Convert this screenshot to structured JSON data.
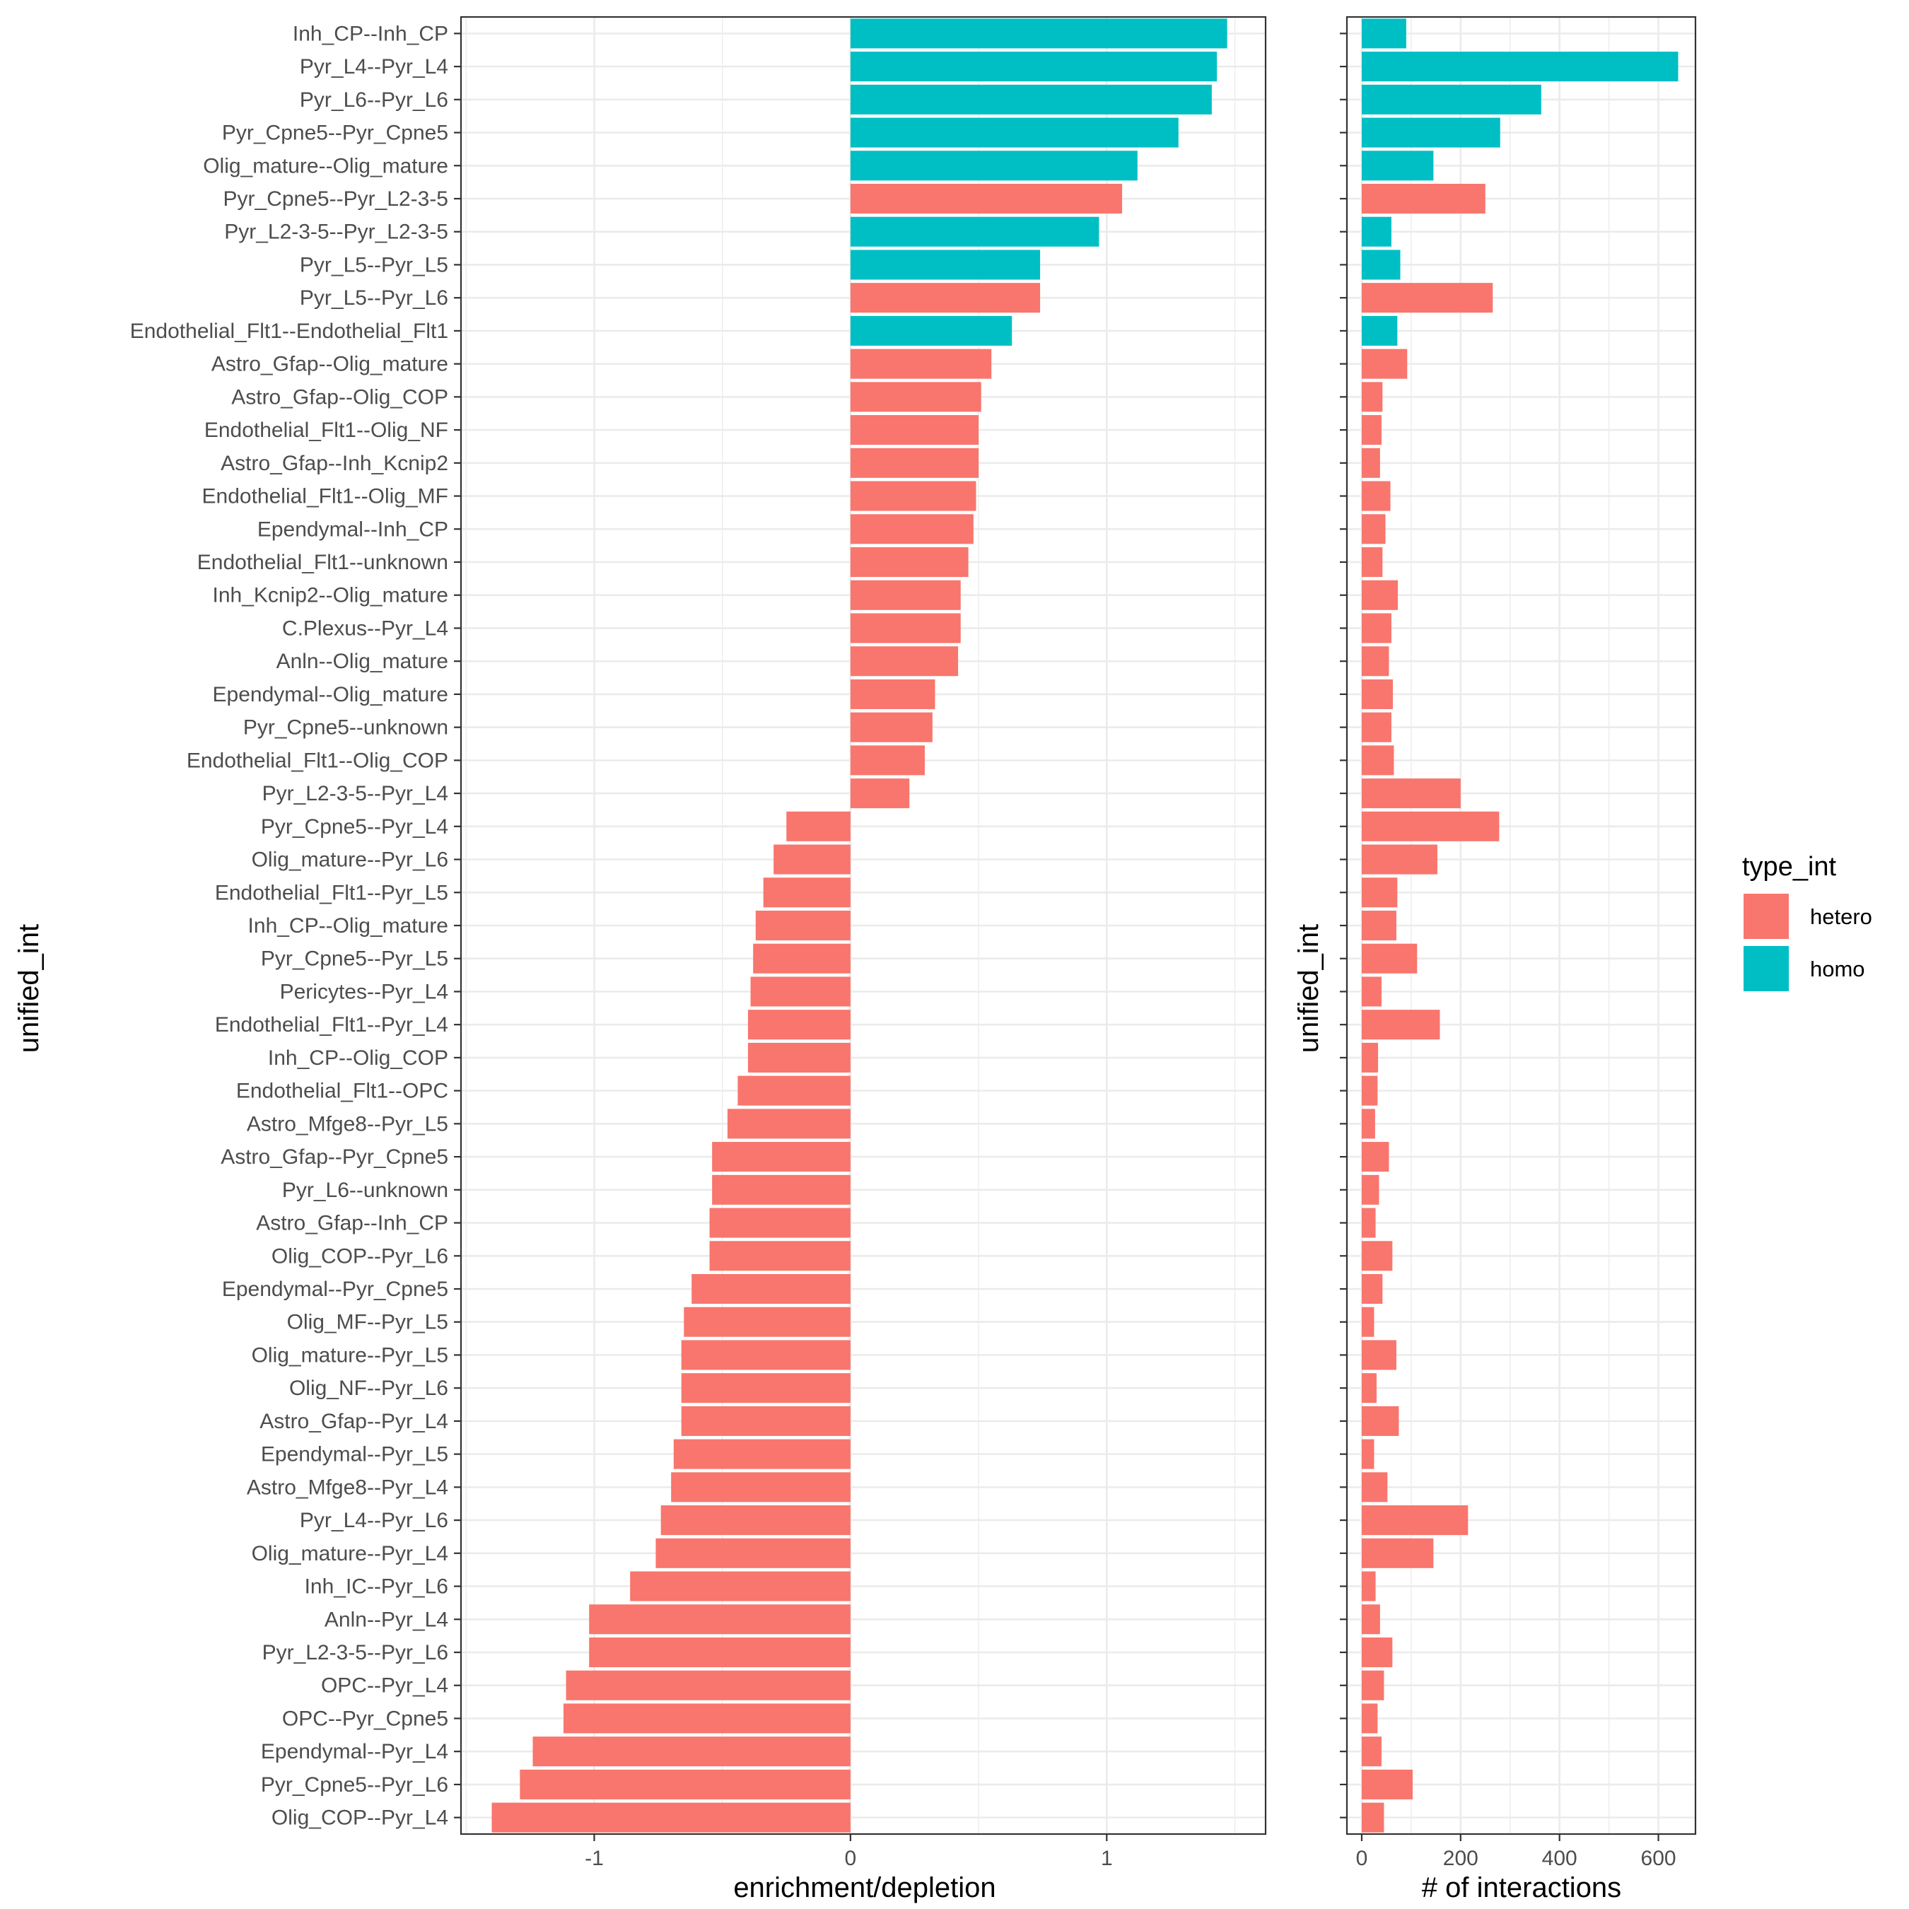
{
  "chart_data": [
    {
      "type": "bar",
      "orientation": "horizontal",
      "xlabel": "enrichment/depletion",
      "ylabel": "unified_int",
      "xlim": [
        -1.52,
        1.62
      ],
      "xticks": [
        -1,
        0,
        1
      ],
      "grid": true,
      "categories": [
        "Inh_CP--Inh_CP",
        "Pyr_L4--Pyr_L4",
        "Pyr_L6--Pyr_L6",
        "Pyr_Cpne5--Pyr_Cpne5",
        "Olig_mature--Olig_mature",
        "Pyr_Cpne5--Pyr_L2-3-5",
        "Pyr_L2-3-5--Pyr_L2-3-5",
        "Pyr_L5--Pyr_L5",
        "Pyr_L5--Pyr_L6",
        "Endothelial_Flt1--Endothelial_Flt1",
        "Astro_Gfap--Olig_mature",
        "Astro_Gfap--Olig_COP",
        "Endothelial_Flt1--Olig_NF",
        "Astro_Gfap--Inh_Kcnip2",
        "Endothelial_Flt1--Olig_MF",
        "Ependymal--Inh_CP",
        "Endothelial_Flt1--unknown",
        "Inh_Kcnip2--Olig_mature",
        "C.Plexus--Pyr_L4",
        "Anln--Olig_mature",
        "Ependymal--Olig_mature",
        "Pyr_Cpne5--unknown",
        "Endothelial_Flt1--Olig_COP",
        "Pyr_L2-3-5--Pyr_L4",
        "Pyr_Cpne5--Pyr_L4",
        "Olig_mature--Pyr_L6",
        "Endothelial_Flt1--Pyr_L5",
        "Inh_CP--Olig_mature",
        "Pyr_Cpne5--Pyr_L5",
        "Pericytes--Pyr_L4",
        "Endothelial_Flt1--Pyr_L4",
        "Inh_CP--Olig_COP",
        "Endothelial_Flt1--OPC",
        "Astro_Mfge8--Pyr_L5",
        "Astro_Gfap--Pyr_Cpne5",
        "Pyr_L6--unknown",
        "Astro_Gfap--Inh_CP",
        "Olig_COP--Pyr_L6",
        "Ependymal--Pyr_Cpne5",
        "Olig_MF--Pyr_L5",
        "Olig_mature--Pyr_L5",
        "Olig_NF--Pyr_L6",
        "Astro_Gfap--Pyr_L4",
        "Ependymal--Pyr_L5",
        "Astro_Mfge8--Pyr_L4",
        "Pyr_L4--Pyr_L6",
        "Olig_mature--Pyr_L4",
        "Inh_IC--Pyr_L6",
        "Anln--Pyr_L4",
        "Pyr_L2-3-5--Pyr_L6",
        "OPC--Pyr_L4",
        "OPC--Pyr_Cpne5",
        "Ependymal--Pyr_L4",
        "Pyr_Cpne5--Pyr_L6",
        "Olig_COP--Pyr_L4"
      ],
      "values": [
        1.47,
        1.43,
        1.41,
        1.28,
        1.12,
        1.06,
        0.97,
        0.74,
        0.74,
        0.63,
        0.55,
        0.51,
        0.5,
        0.5,
        0.49,
        0.48,
        0.46,
        0.43,
        0.43,
        0.42,
        0.33,
        0.32,
        0.29,
        0.23,
        -0.25,
        -0.3,
        -0.34,
        -0.37,
        -0.38,
        -0.39,
        -0.4,
        -0.4,
        -0.44,
        -0.48,
        -0.54,
        -0.54,
        -0.55,
        -0.55,
        -0.62,
        -0.65,
        -0.66,
        -0.66,
        -0.66,
        -0.69,
        -0.7,
        -0.74,
        -0.76,
        -0.86,
        -1.02,
        -1.02,
        -1.11,
        -1.12,
        -1.24,
        -1.29,
        -1.4
      ],
      "types": [
        "homo",
        "homo",
        "homo",
        "homo",
        "homo",
        "hetero",
        "homo",
        "homo",
        "hetero",
        "homo",
        "hetero",
        "hetero",
        "hetero",
        "hetero",
        "hetero",
        "hetero",
        "hetero",
        "hetero",
        "hetero",
        "hetero",
        "hetero",
        "hetero",
        "hetero",
        "hetero",
        "hetero",
        "hetero",
        "hetero",
        "hetero",
        "hetero",
        "hetero",
        "hetero",
        "hetero",
        "hetero",
        "hetero",
        "hetero",
        "hetero",
        "hetero",
        "hetero",
        "hetero",
        "hetero",
        "hetero",
        "hetero",
        "hetero",
        "hetero",
        "hetero",
        "hetero",
        "hetero",
        "hetero",
        "hetero",
        "hetero",
        "hetero",
        "hetero",
        "hetero",
        "hetero",
        "hetero"
      ]
    },
    {
      "type": "bar",
      "orientation": "horizontal",
      "xlabel": "# of interactions",
      "ylabel": "unified_int",
      "xlim": [
        -30,
        675
      ],
      "xticks": [
        0,
        200,
        400,
        600
      ],
      "grid": true,
      "shares_categories_with": "first chart",
      "values": [
        90,
        640,
        363,
        280,
        145,
        250,
        60,
        78,
        265,
        72,
        92,
        42,
        40,
        37,
        58,
        48,
        42,
        73,
        60,
        55,
        63,
        60,
        65,
        200,
        278,
        153,
        72,
        70,
        112,
        40,
        158,
        33,
        32,
        27,
        55,
        35,
        28,
        62,
        42,
        25,
        70,
        30,
        75,
        25,
        52,
        215,
        145,
        28,
        37,
        62,
        45,
        32,
        40,
        103,
        45
      ]
    }
  ],
  "legend": {
    "title": "type_int",
    "placement": "right",
    "items": [
      {
        "label": "hetero",
        "color": "#F8766D"
      },
      {
        "label": "homo",
        "color": "#00BFC4"
      }
    ]
  },
  "colors": {
    "hetero": "#F8766D",
    "homo": "#00BFC4",
    "grid": "#ebebeb",
    "panel_border": "#333333"
  }
}
